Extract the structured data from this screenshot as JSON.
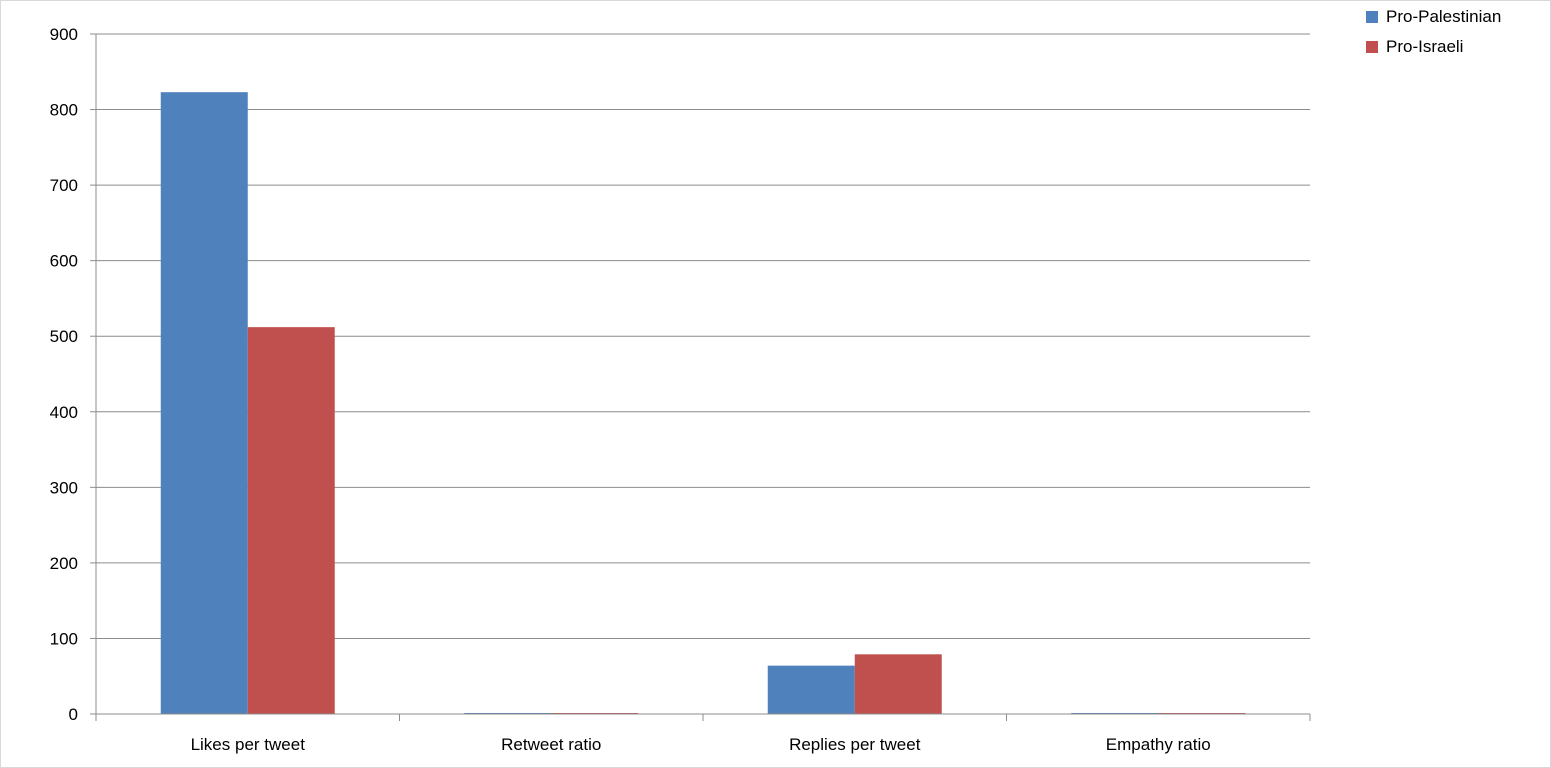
{
  "chart_data": {
    "type": "bar",
    "title": "",
    "xlabel": "",
    "ylabel": "",
    "categories": [
      "Likes per tweet",
      "Retweet ratio",
      "Replies per tweet",
      "Empathy ratio"
    ],
    "series": [
      {
        "name": "Pro-Palestinian",
        "color": "#4f81bd",
        "values": [
          823,
          0.5,
          64,
          0.5
        ]
      },
      {
        "name": "Pro-Israeli",
        "color": "#c0504d",
        "values": [
          512,
          0.5,
          79,
          0.5
        ]
      }
    ],
    "ylim": [
      0,
      900
    ],
    "yticks": [
      0,
      100,
      200,
      300,
      400,
      500,
      600,
      700,
      800,
      900
    ],
    "grid": true,
    "legend": "top-right"
  }
}
